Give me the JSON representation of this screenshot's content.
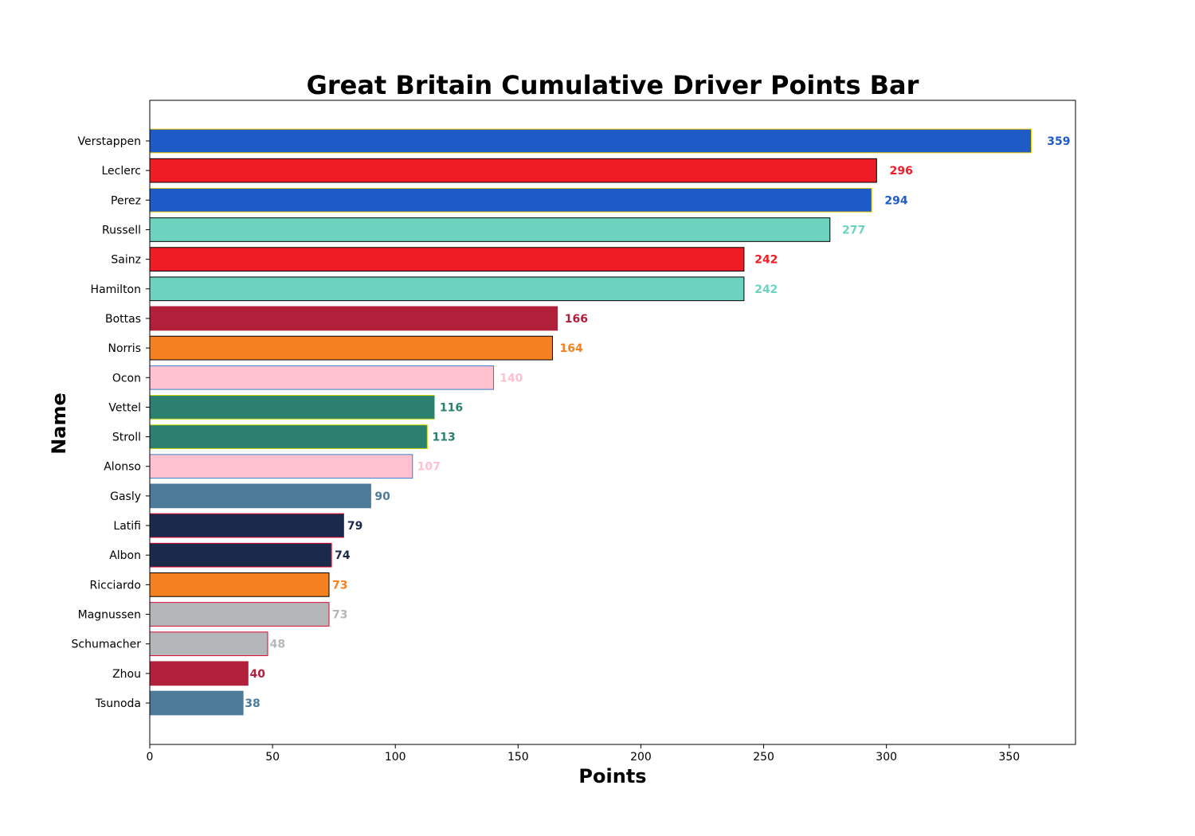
{
  "chart_data": {
    "type": "bar",
    "orientation": "horizontal",
    "title": "Great Britain Cumulative Driver Points Bar",
    "xlabel": "Points",
    "ylabel": "Name",
    "xlim": [
      0,
      377
    ],
    "xticks": [
      0,
      50,
      100,
      150,
      200,
      250,
      300,
      350
    ],
    "grid": false,
    "categories": [
      "Verstappen",
      "Leclerc",
      "Perez",
      "Russell",
      "Sainz",
      "Hamilton",
      "Bottas",
      "Norris",
      "Ocon",
      "Vettel",
      "Stroll",
      "Alonso",
      "Gasly",
      "Latifi",
      "Albon",
      "Ricciardo",
      "Magnussen",
      "Schumacher",
      "Zhou",
      "Tsunoda"
    ],
    "values": [
      359,
      296,
      294,
      277,
      242,
      242,
      166,
      164,
      140,
      116,
      113,
      107,
      90,
      79,
      74,
      73,
      73,
      48,
      40,
      38
    ],
    "value_labels": [
      "359",
      "296",
      "294",
      "277",
      "242",
      "242",
      "166",
      "164",
      "140",
      "116",
      "113",
      "107",
      "90",
      "79",
      "74",
      "73",
      "73",
      "48",
      "40",
      "38"
    ],
    "colors": [
      "#1f5bc6",
      "#ef1c26",
      "#1f5bc6",
      "#6dd3bf",
      "#ef1c26",
      "#6dd3bf",
      "#b11f3b",
      "#f58020",
      "#ffc0cf",
      "#2b806f",
      "#2b806f",
      "#ffc0cf",
      "#4d7b9a",
      "#1b2a4b",
      "#1b2a4b",
      "#f58020",
      "#b4b7ba",
      "#b4b7ba",
      "#b11f3b",
      "#4d7b9a"
    ],
    "edge_colors": [
      "#f5d000",
      "#000000",
      "#f5d000",
      "#000000",
      "#000000",
      "#000000",
      "#b11f3b",
      "#000000",
      "#3a7fd0",
      "#c8d400",
      "#c8d400",
      "#3a7fd0",
      "#4d7b9a",
      "#dc0a32",
      "#dc0a32",
      "#000000",
      "#dc0a32",
      "#dc0a32",
      "#b11f3b",
      "#4d7b9a"
    ]
  }
}
